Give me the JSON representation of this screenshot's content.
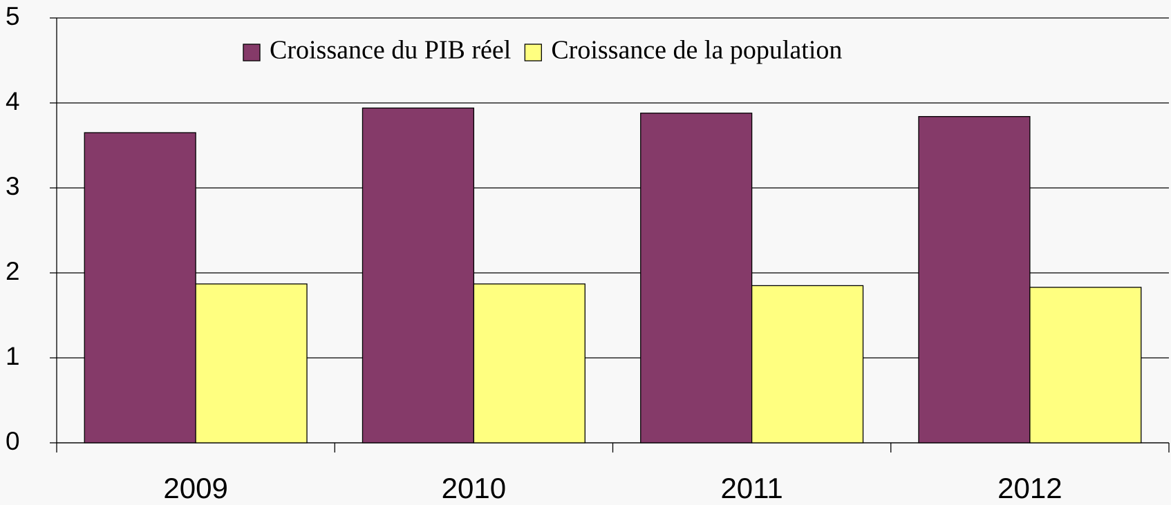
{
  "chart_data": {
    "type": "bar",
    "categories": [
      "2009",
      "2010",
      "2011",
      "2012"
    ],
    "series": [
      {
        "name": "Croissance du PIB réel",
        "color": "#853a69",
        "values": [
          3.65,
          3.94,
          3.88,
          3.84
        ]
      },
      {
        "name": "Croissance de la population",
        "color": "#ffff80",
        "values": [
          1.87,
          1.87,
          1.85,
          1.83
        ]
      }
    ],
    "ylim": [
      0,
      5
    ],
    "yticks": [
      0,
      1,
      2,
      3,
      4,
      5
    ],
    "grid": true,
    "legend": "top"
  }
}
